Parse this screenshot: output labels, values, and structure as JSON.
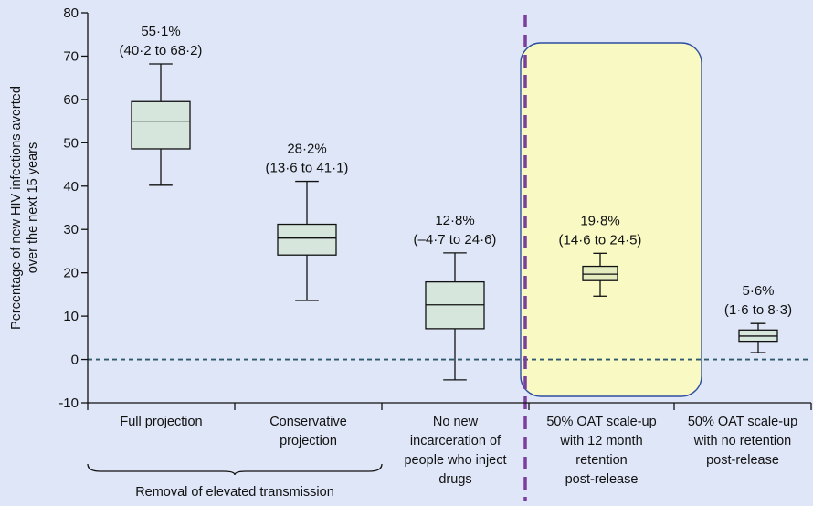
{
  "chart_data": {
    "type": "box",
    "ylabel": "Percentage of new HIV infections averted over the next 15 years",
    "ylim": [
      -10,
      80
    ],
    "yticks": [
      -10,
      0,
      10,
      20,
      30,
      40,
      50,
      60,
      70,
      80
    ],
    "grid": false,
    "reference_line": {
      "y": 0,
      "style": "dashed"
    },
    "categories": [
      [
        "Full projection"
      ],
      [
        "Conservative",
        "projection"
      ],
      [
        "No new",
        "incarceration of",
        "people who inject",
        "drugs"
      ],
      [
        "50% OAT scale-up",
        "with 12 month",
        "retention",
        "post-release"
      ],
      [
        "50% OAT scale-up",
        "with no retention",
        "post-release"
      ]
    ],
    "group_bracket": {
      "label": "Removal of elevated transmission",
      "spans": [
        0,
        1
      ]
    },
    "boxes": [
      {
        "min": 40.2,
        "q1": 48.6,
        "median": 55.0,
        "q3": 59.5,
        "max": 68.2,
        "label_line1": "55·1%",
        "label_line2": "(40·2 to 68·2)"
      },
      {
        "min": 13.6,
        "q1": 24.1,
        "median": 28.0,
        "q3": 31.2,
        "max": 41.1,
        "label_line1": "28·2%",
        "label_line2": "(13·6 to 41·1)"
      },
      {
        "min": -4.7,
        "q1": 7.1,
        "median": 12.6,
        "q3": 17.9,
        "max": 24.6,
        "label_line1": "12·8%",
        "label_line2": "(–4·7 to 24·6)"
      },
      {
        "min": 14.6,
        "q1": 18.2,
        "median": 19.7,
        "q3": 21.5,
        "max": 24.5,
        "label_line1": "19·8%",
        "label_line2": "(14·6 to 24·5)"
      },
      {
        "min": 1.6,
        "q1": 4.2,
        "median": 5.4,
        "q3": 6.8,
        "max": 8.3,
        "label_line1": "5·6%",
        "label_line2": "(1·6 to 8·3)"
      }
    ],
    "highlighted_category": 3,
    "colors": {
      "box_fill": "#d6e6dc",
      "highlight_box_fill": "#e3ebbf",
      "highlight_region": "#f9f9c4",
      "highlight_border": "#2f4f9f",
      "divider": "#7a3f9e",
      "zero_line": "#2f5a6e",
      "axis": "#111111"
    }
  }
}
